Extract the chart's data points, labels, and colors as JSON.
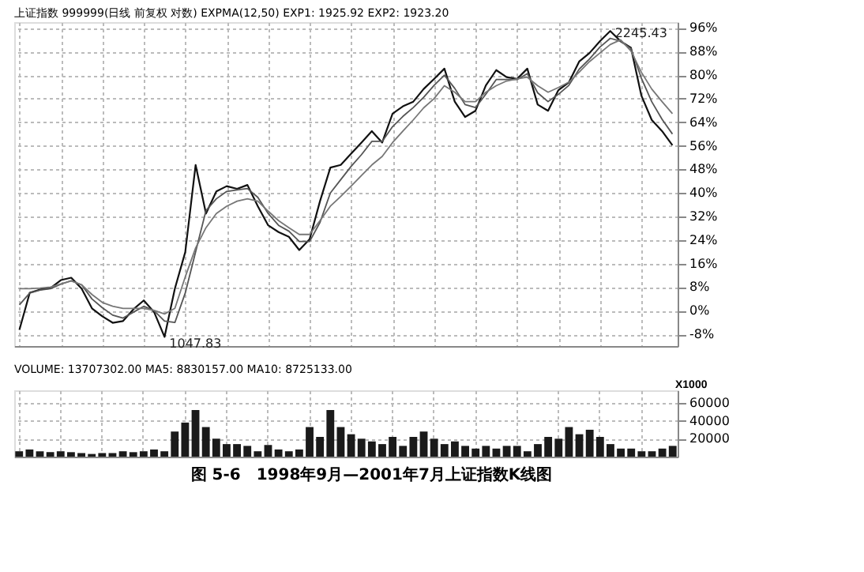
{
  "chart_data": [
    {
      "type": "line",
      "title": "上证指数 999999(日线 前复权 对数) EXPMA(12,50) EXP1: 1925.92 EXP2: 1923.20",
      "categories": [
        null,
        null,
        null,
        null,
        null,
        null,
        null,
        null,
        null,
        null,
        null,
        null,
        null,
        null,
        null,
        null,
        null,
        null,
        null,
        null,
        null,
        null,
        null,
        null,
        null,
        null,
        null,
        null,
        null,
        null,
        null,
        null,
        null,
        null,
        null,
        null,
        null,
        null,
        null,
        null,
        null,
        null,
        null,
        null,
        null,
        null,
        null,
        null,
        null,
        null,
        null,
        null,
        null,
        null,
        null,
        null,
        null,
        null,
        null,
        null,
        null,
        null,
        null,
        null
      ],
      "series": [
        {
          "color": "#111111",
          "values": [
            -6.5,
            6.1,
            7.2,
            7.7,
            10.4,
            11.2,
            7.5,
            0.8,
            -1.9,
            -4.1,
            -3.5,
            0.5,
            3.5,
            -0.5,
            -8.9,
            7.5,
            19.9,
            49.5,
            33.0,
            40.5,
            42.3,
            41.4,
            42.7,
            35.5,
            29.0,
            26.7,
            25.1,
            20.6,
            24.3,
            37.2,
            48.6,
            49.5,
            53.3,
            57.1,
            61.0,
            57.1,
            66.9,
            69.4,
            71.0,
            75.3,
            78.7,
            82.2,
            71.0,
            65.8,
            67.9,
            76.5,
            81.7,
            79.3,
            78.7,
            82.2,
            70.0,
            67.9,
            74.9,
            77.5,
            84.6,
            87.5,
            91.5,
            95.0,
            91.5,
            89.3,
            73.1,
            64.8,
            61.0,
            56.2
          ]
        },
        {
          "color": "#555555",
          "values": [
            2.0,
            6.0,
            7.0,
            7.5,
            9.0,
            10.2,
            8.8,
            4.0,
            1.0,
            -1.5,
            -2.5,
            -0.5,
            1.5,
            0.0,
            -3.5,
            -4.0,
            6.0,
            20.0,
            34.0,
            38.0,
            40.5,
            41.0,
            41.5,
            38.5,
            33.0,
            29.0,
            27.0,
            23.5,
            23.5,
            30.0,
            40.0,
            44.5,
            49.0,
            53.0,
            57.5,
            57.5,
            62.5,
            66.0,
            69.0,
            72.5,
            76.5,
            80.0,
            75.5,
            70.0,
            69.0,
            73.5,
            78.5,
            78.5,
            78.5,
            80.5,
            74.0,
            71.0,
            73.5,
            76.5,
            82.0,
            85.5,
            89.5,
            92.5,
            91.5,
            89.0,
            79.0,
            71.0,
            65.0,
            60.0
          ]
        },
        {
          "color": "#777777",
          "values": [
            7.5,
            7.5,
            7.7,
            8.0,
            9.1,
            10.1,
            8.8,
            5.5,
            2.8,
            1.5,
            0.8,
            0.8,
            0.8,
            0.1,
            -1.1,
            0.8,
            11.5,
            21.3,
            28.2,
            33.0,
            35.5,
            37.2,
            38.0,
            37.2,
            33.8,
            30.6,
            28.2,
            25.9,
            25.9,
            30.6,
            35.5,
            38.8,
            42.3,
            45.9,
            49.5,
            52.4,
            57.1,
            61.0,
            64.8,
            68.9,
            72.0,
            76.4,
            74.2,
            71.0,
            71.0,
            74.2,
            76.4,
            78.0,
            78.7,
            79.3,
            76.4,
            74.2,
            75.8,
            77.6,
            81.0,
            84.6,
            87.5,
            90.4,
            92.0,
            88.2,
            81.0,
            75.3,
            71.0,
            66.9
          ]
        }
      ],
      "ylim": [
        -12,
        98
      ],
      "yticks": [
        {
          "value": 96,
          "label": "96%"
        },
        {
          "value": 88,
          "label": "88%"
        },
        {
          "value": 80,
          "label": "80%"
        },
        {
          "value": 72,
          "label": "72%"
        },
        {
          "value": 64,
          "label": "64%"
        },
        {
          "value": 56,
          "label": "56%"
        },
        {
          "value": 48,
          "label": "48%"
        },
        {
          "value": 40,
          "label": "40%"
        },
        {
          "value": 32,
          "label": "32%"
        },
        {
          "value": 24,
          "label": "24%"
        },
        {
          "value": 16,
          "label": "16%"
        },
        {
          "value": 8,
          "label": "8%"
        },
        {
          "value": 0,
          "label": "0%"
        },
        {
          "value": -8,
          "label": "-8%"
        }
      ],
      "tick_labels": "y",
      "grid": true,
      "marker": "none",
      "line_style": "solid",
      "annotations": [
        "2245.43",
        "1047.83"
      ]
    },
    {
      "type": "bar",
      "title": "VOLUME: 13707302.00 MA5: 8830157.00 MA10: 8725133.00",
      "ylabel": "X1000",
      "categories": [
        null,
        null,
        null,
        null,
        null,
        null,
        null,
        null,
        null,
        null,
        null,
        null,
        null,
        null,
        null,
        null,
        null,
        null,
        null,
        null,
        null,
        null,
        null,
        null,
        null,
        null,
        null,
        null,
        null,
        null,
        null,
        null,
        null,
        null,
        null,
        null,
        null,
        null,
        null,
        null,
        null,
        null,
        null,
        null,
        null,
        null,
        null,
        null,
        null,
        null,
        null,
        null,
        null,
        null,
        null,
        null,
        null,
        null,
        null,
        null,
        null,
        null,
        null,
        null
      ],
      "color": "#1a1a1a",
      "values": [
        6000,
        8000,
        6000,
        5000,
        6000,
        5000,
        4000,
        3000,
        4000,
        4000,
        6000,
        5000,
        6000,
        8000,
        6000,
        28000,
        38000,
        52000,
        33000,
        20000,
        14000,
        14000,
        12000,
        6000,
        13000,
        8000,
        6000,
        8000,
        33000,
        22000,
        52000,
        33000,
        25000,
        20000,
        17000,
        14000,
        22000,
        12000,
        22000,
        28000,
        20000,
        14000,
        17000,
        12000,
        9000,
        12000,
        9000,
        12000,
        12000,
        6000,
        14000,
        22000,
        20000,
        33000,
        25000,
        30000,
        22000,
        14000,
        9000,
        9000,
        6000,
        6000,
        9000,
        12000
      ],
      "ylim": [
        0,
        74000
      ],
      "yticks": [
        20000,
        40000,
        60000
      ],
      "tick_labels": "y",
      "grid": true,
      "annotations": [
        "图 5-6　1998年9月—2001年7月上证指数K线图"
      ]
    }
  ]
}
